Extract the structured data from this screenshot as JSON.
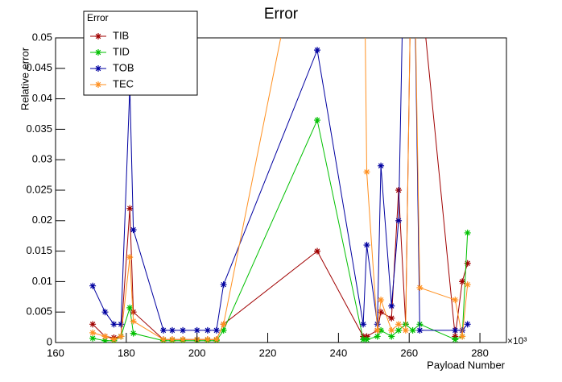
{
  "chart_data": {
    "type": "line",
    "title": "Error",
    "x_label": "Payload Number",
    "y_label": "Relative error",
    "x_exponent": "×10³",
    "legend_title": "Error",
    "legend": "upper-left",
    "x": [
      170.5,
      174,
      176.5,
      178.5,
      181,
      182,
      190.5,
      193,
      196,
      200,
      203,
      205.5,
      207.5,
      234,
      247,
      248,
      251,
      252,
      255,
      257,
      259,
      261,
      263,
      273,
      275,
      276.5
    ],
    "series": [
      {
        "name": "TIB",
        "color": "#a00000",
        "values": [
          0.003,
          0.001,
          0.0008,
          0.001,
          0.022,
          0.005,
          0.0005,
          0.0005,
          0.0005,
          0.0005,
          0.0005,
          0.0005,
          0.003,
          0.015,
          0.001,
          0.001,
          0.002,
          0.005,
          0.004,
          0.025,
          0.003,
          0.08,
          0.06,
          0.001,
          0.01,
          0.013
        ]
      },
      {
        "name": "TID",
        "color": "#00c000",
        "values": [
          0.0007,
          0.0003,
          0.0003,
          0.001,
          0.0057,
          0.0015,
          0.0003,
          0.0003,
          0.0003,
          0.0003,
          0.0003,
          0.0003,
          0.002,
          0.0365,
          0.0005,
          0.0005,
          0.001,
          0.002,
          0.001,
          0.002,
          0.003,
          0.002,
          0.003,
          0.0005,
          0.001,
          0.018
        ]
      },
      {
        "name": "TOB",
        "color": "#0000a0",
        "values": [
          0.0093,
          0.005,
          0.003,
          0.003,
          0.042,
          0.0185,
          0.002,
          0.002,
          0.002,
          0.002,
          0.002,
          0.002,
          0.0095,
          0.048,
          0.003,
          0.016,
          0.003,
          0.029,
          0.006,
          0.02,
          0.08,
          0.08,
          0.002,
          0.002,
          0.002,
          0.003
        ]
      },
      {
        "name": "TEC",
        "color": "#ff9020",
        "values": [
          0.0016,
          0.001,
          0.0005,
          0.001,
          0.014,
          0.0035,
          0.0005,
          0.0005,
          0.0005,
          0.0005,
          0.0005,
          0.0005,
          0.003,
          0.08,
          0.08,
          0.028,
          0.002,
          0.007,
          0.002,
          0.003,
          0.002,
          0.08,
          0.009,
          0.007,
          0.001,
          0.0095
        ]
      }
    ],
    "xlim": [
      160,
      287.5
    ],
    "xticks": [
      160,
      180,
      200,
      220,
      240,
      260,
      280
    ],
    "ylim": [
      0,
      0.05
    ],
    "yticks": [
      0,
      0.005,
      0.01,
      0.015,
      0.02,
      0.025,
      0.03,
      0.035,
      0.04,
      0.045,
      0.05
    ]
  }
}
